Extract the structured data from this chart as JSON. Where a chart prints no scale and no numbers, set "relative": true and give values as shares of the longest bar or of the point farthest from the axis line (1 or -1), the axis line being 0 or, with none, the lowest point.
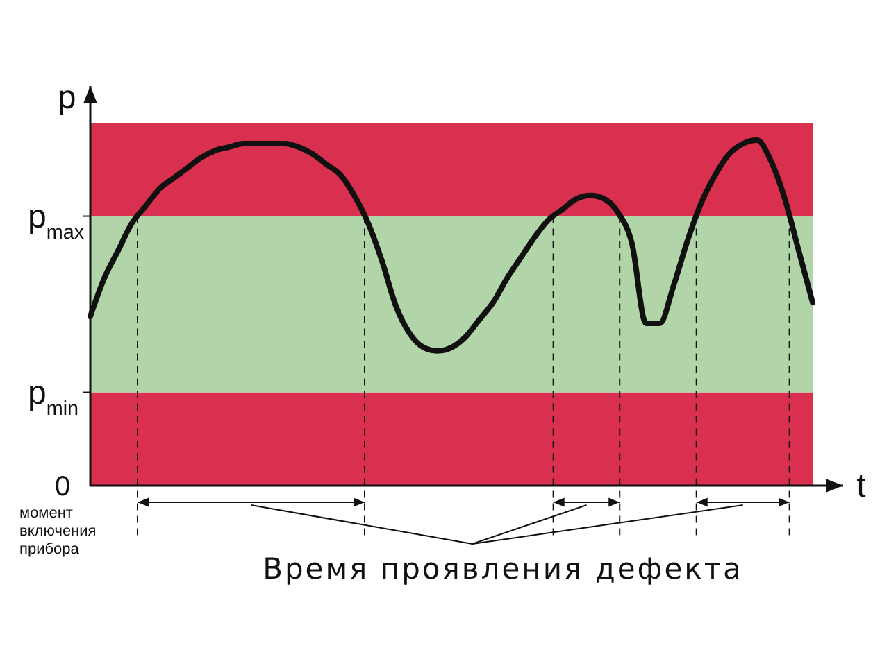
{
  "chart_data": {
    "type": "line",
    "relative": true,
    "ylabel": "p",
    "xlabel": "t",
    "categories": [
      null,
      null,
      null,
      null,
      null,
      null,
      null,
      null,
      null,
      null,
      null,
      null,
      null,
      null,
      null,
      null,
      null,
      null,
      null,
      null,
      null,
      null,
      null,
      null,
      null,
      null,
      null,
      null,
      null,
      null,
      null,
      null,
      null,
      null,
      null,
      null,
      null,
      null,
      null,
      null,
      null,
      null,
      null,
      null,
      null,
      null,
      null,
      null,
      null,
      null,
      null,
      null,
      null
    ],
    "series": [
      {
        "color": "#111111",
        "values": [
          0.49,
          0.6,
          0.68,
          0.76,
          0.81,
          0.86,
          0.89,
          0.92,
          0.95,
          0.97,
          0.98,
          0.99,
          0.99,
          0.99,
          0.99,
          0.98,
          0.96,
          0.93,
          0.9,
          0.84,
          0.76,
          0.65,
          0.52,
          0.44,
          0.4,
          0.39,
          0.4,
          0.43,
          0.48,
          0.53,
          0.6,
          0.66,
          0.72,
          0.77,
          0.8,
          0.83,
          0.84,
          0.83,
          0.79,
          0.7,
          0.47,
          0.47,
          0.58,
          0.71,
          0.82,
          0.9,
          0.96,
          0.99,
          1.0,
          0.94,
          0.83,
          0.68,
          0.53
        ]
      }
    ],
    "bands": [
      {
        "axis": "y",
        "from": 0,
        "to": 0.27,
        "color": "#d9304f"
      },
      {
        "axis": "y",
        "from": 0.27,
        "to": 0.78,
        "color": "#b1d5a9"
      },
      {
        "axis": "y",
        "from": 0.78,
        "to": 1.05,
        "color": "#d9304f"
      }
    ],
    "ref_lines": [
      {
        "axis": "y",
        "value": 0.78,
        "label": "p$_{max}$"
      },
      {
        "axis": "y",
        "value": 0.27,
        "label": "p$_{min}$"
      }
    ],
    "annotations": [
      "0",
      "момент включения прибора",
      "Время проявления дефекта"
    ],
    "line_style": "solid",
    "marker": "none"
  }
}
